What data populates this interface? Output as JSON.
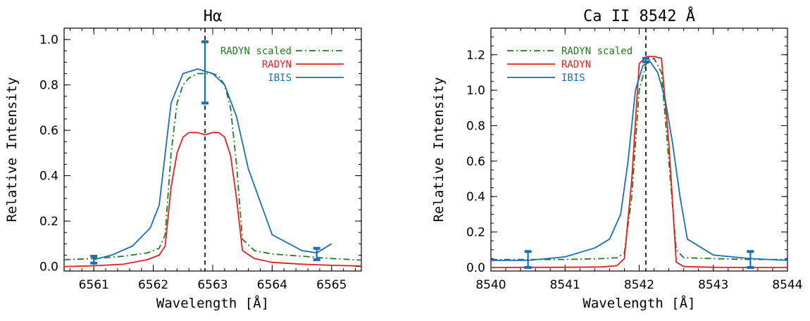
{
  "chart_data": [
    {
      "type": "line",
      "title": "Hα",
      "xlabel": "Wavelength [Å]",
      "ylabel": "Relative Intensity",
      "xlim": [
        6560.5,
        6565.5
      ],
      "ylim": [
        -0.02,
        1.05
      ],
      "xticks": [
        "6561",
        "6562",
        "6563",
        "6564",
        "6565"
      ],
      "xtick_values": [
        6561,
        6562,
        6563,
        6564,
        6565
      ],
      "yticks": [
        "0.0",
        "0.2",
        "0.4",
        "0.6",
        "0.8",
        "1.0"
      ],
      "ytick_values": [
        0.0,
        0.2,
        0.4,
        0.6,
        0.8,
        1.0
      ],
      "line_center": 6562.87,
      "legend_position": "top-right",
      "series": [
        {
          "name": "RADYN scaled",
          "color": "#1e7b1e",
          "style": "dashdot",
          "x": [
            6560.5,
            6561.0,
            6561.5,
            6561.9,
            6562.1,
            6562.2,
            6562.3,
            6562.4,
            6562.5,
            6562.6,
            6562.75,
            6562.87,
            6563.0,
            6563.1,
            6563.2,
            6563.3,
            6563.4,
            6563.5,
            6563.7,
            6564.0,
            6564.5,
            6565.0,
            6565.5
          ],
          "y": [
            0.03,
            0.035,
            0.045,
            0.06,
            0.08,
            0.14,
            0.5,
            0.72,
            0.8,
            0.83,
            0.85,
            0.85,
            0.85,
            0.84,
            0.8,
            0.7,
            0.45,
            0.12,
            0.07,
            0.055,
            0.045,
            0.035,
            0.028
          ]
        },
        {
          "name": "RADYN",
          "color": "#e32020",
          "style": "solid",
          "x": [
            6560.5,
            6561.0,
            6561.5,
            6561.9,
            6562.1,
            6562.2,
            6562.3,
            6562.4,
            6562.5,
            6562.6,
            6562.75,
            6562.87,
            6563.0,
            6563.1,
            6563.2,
            6563.3,
            6563.4,
            6563.5,
            6563.7,
            6564.0,
            6564.5,
            6565.0,
            6565.5
          ],
          "y": [
            0.0,
            0.003,
            0.01,
            0.03,
            0.05,
            0.09,
            0.35,
            0.5,
            0.57,
            0.59,
            0.59,
            0.58,
            0.59,
            0.59,
            0.57,
            0.49,
            0.3,
            0.07,
            0.035,
            0.018,
            0.01,
            0.005,
            0.002
          ]
        },
        {
          "name": "IBIS",
          "color": "#1a6fb0",
          "style": "solid",
          "x": [
            6561.0,
            6561.3,
            6561.65,
            6561.95,
            6562.1,
            6562.3,
            6562.5,
            6562.75,
            6563.0,
            6563.2,
            6563.4,
            6563.6,
            6564.0,
            6564.5,
            6564.75,
            6565.0
          ],
          "y": [
            0.03,
            0.05,
            0.09,
            0.17,
            0.27,
            0.72,
            0.85,
            0.87,
            0.85,
            0.8,
            0.66,
            0.43,
            0.14,
            0.07,
            0.06,
            0.1
          ]
        }
      ],
      "error_bars": [
        {
          "x": 6561.0,
          "low": 0.015,
          "high": 0.045
        },
        {
          "x": 6562.87,
          "low": 0.72,
          "high": 0.99
        },
        {
          "x": 6564.75,
          "low": 0.03,
          "high": 0.08
        }
      ]
    },
    {
      "type": "line",
      "title": "Ca II 8542 Å",
      "xlabel": "Wavelength [Å]",
      "ylabel": "Relative Intensity",
      "xlim": [
        8540.0,
        8544.0
      ],
      "ylim": [
        -0.02,
        1.35
      ],
      "xticks": [
        "8540",
        "8541",
        "8542",
        "8543",
        "8544"
      ],
      "xtick_values": [
        8540,
        8541,
        8542,
        8543,
        8544
      ],
      "yticks": [
        "0.0",
        "0.2",
        "0.4",
        "0.6",
        "0.8",
        "1.0",
        "1.2"
      ],
      "ytick_values": [
        0.0,
        0.2,
        0.4,
        0.6,
        0.8,
        1.0,
        1.2
      ],
      "line_center": 8542.09,
      "legend_position": "top-left",
      "series": [
        {
          "name": "RADYN scaled",
          "color": "#1e7b1e",
          "style": "dashdot",
          "x": [
            8540.0,
            8541.0,
            8541.5,
            8541.7,
            8541.8,
            8541.9,
            8542.0,
            8542.1,
            8542.2,
            8542.3,
            8542.4,
            8542.5,
            8542.6,
            8543.0,
            8543.5,
            8544.0
          ],
          "y": [
            0.045,
            0.045,
            0.05,
            0.055,
            0.08,
            0.4,
            1.0,
            1.16,
            1.18,
            1.1,
            0.6,
            0.1,
            0.055,
            0.05,
            0.045,
            0.045
          ]
        },
        {
          "name": "RADYN",
          "color": "#e32020",
          "style": "solid",
          "x": [
            8540.0,
            8541.0,
            8541.5,
            8541.7,
            8541.8,
            8541.9,
            8542.0,
            8542.1,
            8542.2,
            8542.3,
            8542.4,
            8542.5,
            8542.6,
            8543.0,
            8543.5,
            8544.0
          ],
          "y": [
            0.0,
            0.001,
            0.003,
            0.01,
            0.05,
            0.5,
            1.15,
            1.19,
            1.19,
            1.18,
            0.7,
            0.03,
            0.005,
            0.001,
            0.0,
            0.0
          ]
        },
        {
          "name": "IBIS",
          "color": "#1a6fb0",
          "style": "solid",
          "x": [
            8540.0,
            8540.5,
            8541.0,
            8541.4,
            8541.6,
            8541.75,
            8541.85,
            8541.95,
            8542.05,
            8542.15,
            8542.25,
            8542.35,
            8542.45,
            8542.55,
            8542.65,
            8543.0,
            8543.5,
            8544.0
          ],
          "y": [
            0.04,
            0.04,
            0.06,
            0.11,
            0.16,
            0.3,
            0.6,
            1.0,
            1.14,
            1.16,
            1.1,
            0.95,
            0.7,
            0.4,
            0.16,
            0.07,
            0.05,
            0.04
          ]
        }
      ],
      "error_bars": [
        {
          "x": 8540.5,
          "low": 0.0,
          "high": 0.09
        },
        {
          "x": 8542.09,
          "low": 1.16,
          "high": 1.18
        },
        {
          "x": 8543.5,
          "low": 0.0,
          "high": 0.09
        }
      ]
    }
  ]
}
